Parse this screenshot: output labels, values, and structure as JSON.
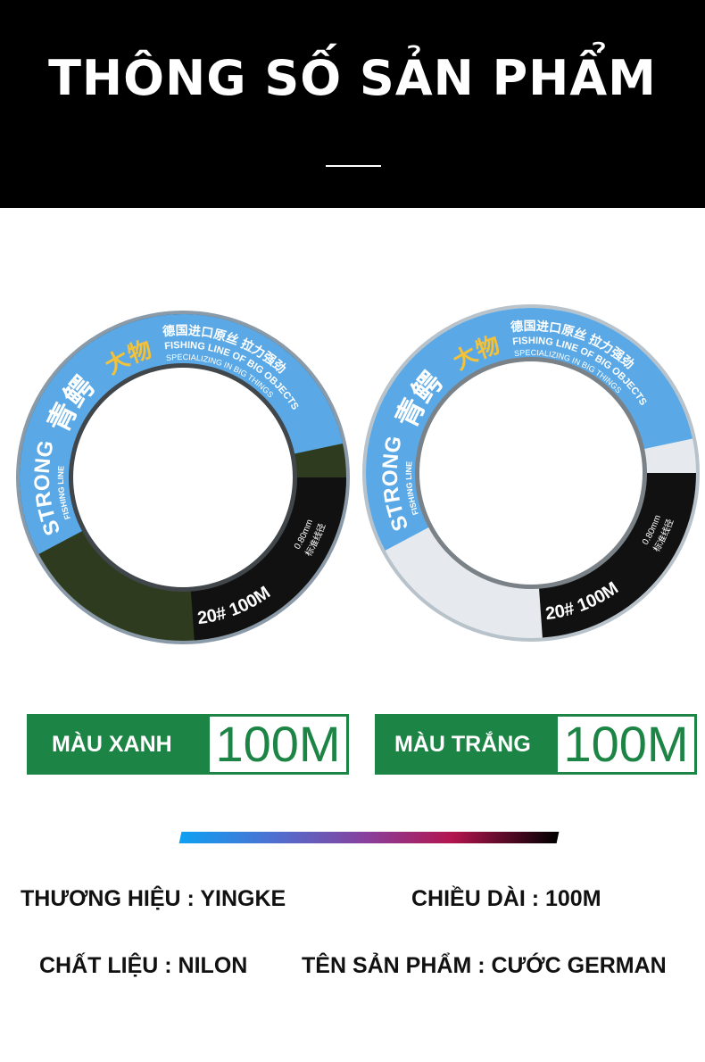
{
  "header": {
    "title": "THÔNG SỐ SẢN PHẨM"
  },
  "products": [
    {
      "variant_label": "MÀU XANH",
      "length_label": "100M",
      "line_color": "#2e3b1f",
      "spool_text": {
        "brand_cn": "青鳄",
        "big_cn": "大物",
        "strong": "STRONG",
        "fishing_line": "FISHING LINE",
        "top_cn": "德国进口原丝 拉力强劲",
        "fishing_line_big": "FISHING LINE OF BIG OBJECTS",
        "specializing": "SPECIALIZING IN BIG THINGS",
        "size": "20# 100M",
        "diameter_cn": "标准线径",
        "diameter": "0.80mm"
      }
    },
    {
      "variant_label": "MÀU TRẮNG",
      "length_label": "100M",
      "line_color": "#e6eaee",
      "spool_text": {
        "brand_cn": "青鳄",
        "big_cn": "大物",
        "strong": "STRONG",
        "fishing_line": "FISHING LINE",
        "top_cn": "德国进口原丝 拉力强劲",
        "fishing_line_big": "FISHING LINE OF BIG OBJECTS",
        "specializing": "SPECIALIZING IN BIG THINGS",
        "size": "20# 100M",
        "diameter_cn": "标准线径",
        "diameter": "0.80mm"
      }
    }
  ],
  "specs": {
    "brand": "THƯƠNG HIỆU : YINGKE",
    "length": "CHIỀU DÀI : 100M",
    "material": "CHẤT LIỆU : NILON",
    "product_name": "TÊN SẢN PHẨM : CƯỚC GERMAN"
  },
  "colors": {
    "label_green": "#1c8444",
    "spool_blue": "#5aa9e6",
    "header_bg": "#000000"
  }
}
